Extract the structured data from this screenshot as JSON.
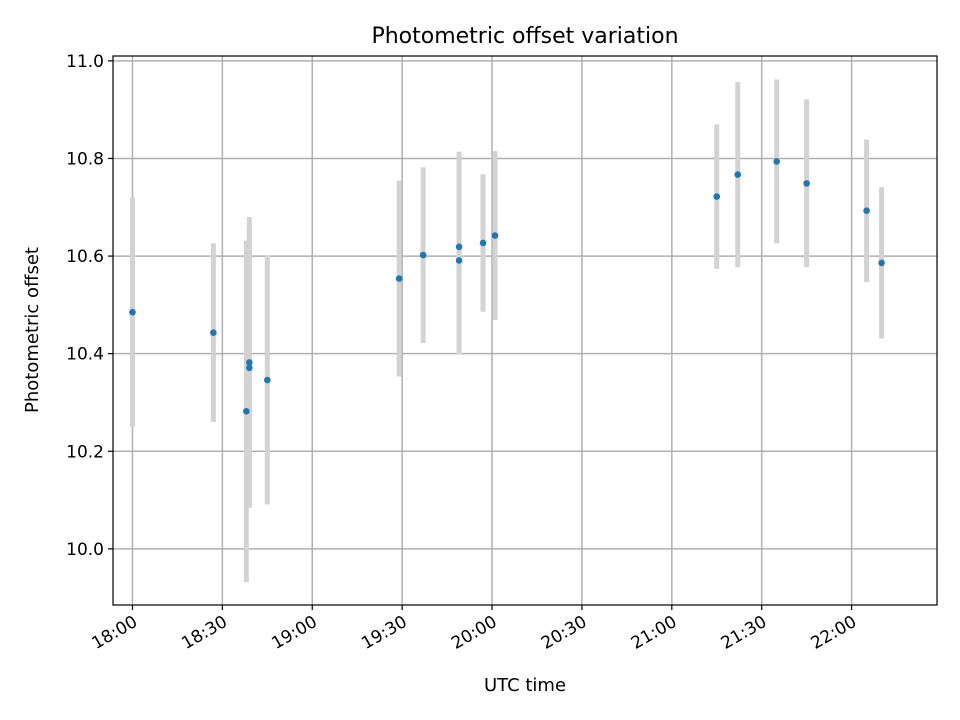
{
  "chart_data": {
    "type": "scatter",
    "title": "Photometric offset variation",
    "xlabel": "UTC time",
    "ylabel": "Photometric offset",
    "xlim": [
      "17:53:30",
      "22:28:30"
    ],
    "ylim": [
      9.885,
      11.01
    ],
    "x_ticks": [
      "18:00",
      "18:30",
      "19:00",
      "19:30",
      "20:00",
      "20:30",
      "21:00",
      "21:30",
      "22:00"
    ],
    "y_ticks": [
      "10.0",
      "10.2",
      "10.4",
      "10.6",
      "10.8",
      "11.0"
    ],
    "grid": true,
    "marker_color": "#1f77b4",
    "errorbar_color": "#d3d3d3",
    "points": [
      {
        "x": "18:00",
        "y": 10.485,
        "err": 0.235
      },
      {
        "x": "18:27",
        "y": 10.443,
        "err": 0.183
      },
      {
        "x": "18:38",
        "y": 10.282,
        "err": 0.35
      },
      {
        "x": "18:39",
        "y": 10.382,
        "err": 0.298
      },
      {
        "x": "18:39",
        "y": 10.371,
        "err": 0.286
      },
      {
        "x": "18:45",
        "y": 10.346,
        "err": 0.255
      },
      {
        "x": "19:29",
        "y": 10.554,
        "err": 0.201
      },
      {
        "x": "19:37",
        "y": 10.602,
        "err": 0.18
      },
      {
        "x": "19:49",
        "y": 10.591,
        "err": 0.192
      },
      {
        "x": "19:49",
        "y": 10.619,
        "err": 0.195
      },
      {
        "x": "19:57",
        "y": 10.627,
        "err": 0.141
      },
      {
        "x": "20:01",
        "y": 10.642,
        "err": 0.173
      },
      {
        "x": "21:15",
        "y": 10.722,
        "err": 0.148
      },
      {
        "x": "21:22",
        "y": 10.767,
        "err": 0.19
      },
      {
        "x": "21:35",
        "y": 10.794,
        "err": 0.168
      },
      {
        "x": "21:45",
        "y": 10.749,
        "err": 0.172
      },
      {
        "x": "22:05",
        "y": 10.693,
        "err": 0.146
      },
      {
        "x": "22:10",
        "y": 10.586,
        "err": 0.155
      }
    ]
  }
}
